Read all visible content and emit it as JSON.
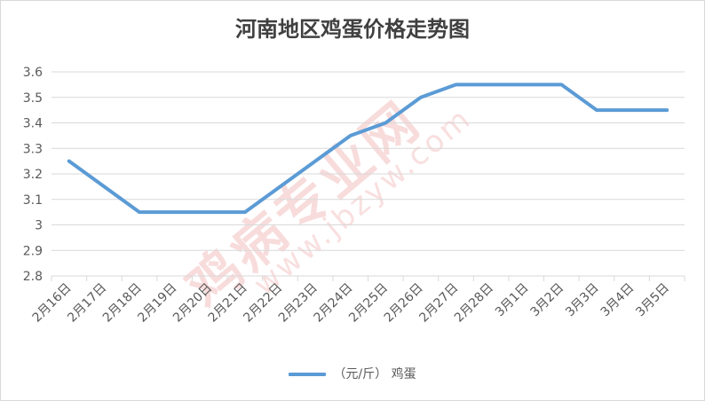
{
  "title": "河南地区鸡蛋价格走势图",
  "watermark": {
    "text": "鸡病专业网",
    "url": "www.jbzyw.com"
  },
  "colors": {
    "series": "#5b9bd5",
    "grid": "#d9d9d9",
    "text": "#595959",
    "watermark": "#e15f5f"
  },
  "chart_data": {
    "type": "line",
    "title": "河南地区鸡蛋价格走势图",
    "xlabel": "",
    "ylabel": "",
    "categories": [
      "2月16日",
      "2月17日",
      "2月18日",
      "2月19日",
      "2月20日",
      "2月21日",
      "2月22日",
      "2月23日",
      "2月24日",
      "2月25日",
      "2月26日",
      "2月27日",
      "2月28日",
      "3月1日",
      "3月2日",
      "3月3日",
      "3月4日",
      "3月5日"
    ],
    "series": [
      {
        "name": "（元/斤） 鸡蛋",
        "values": [
          3.25,
          3.15,
          3.05,
          3.05,
          3.05,
          3.05,
          3.15,
          3.25,
          3.35,
          3.4,
          3.5,
          3.55,
          3.55,
          3.55,
          3.55,
          3.45,
          3.45,
          3.45
        ]
      }
    ],
    "yticks": [
      "2.8",
      "2.9",
      "3",
      "3.1",
      "3.2",
      "3.3",
      "3.4",
      "3.5",
      "3.6"
    ],
    "ylim": [
      2.8,
      3.6
    ],
    "grid": true,
    "legend_position": "bottom"
  }
}
